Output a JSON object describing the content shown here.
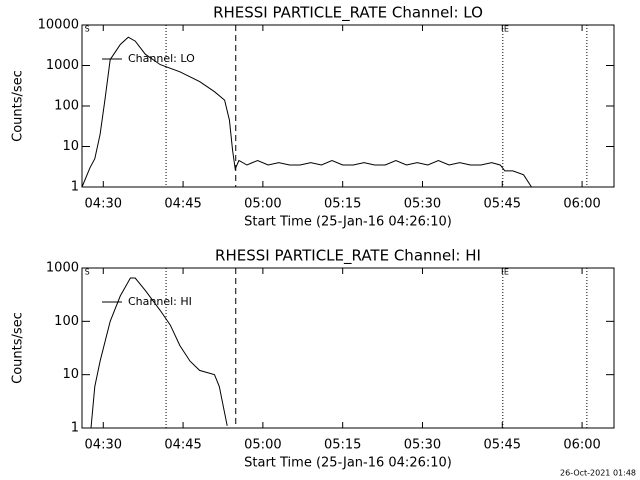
{
  "chart_data": [
    {
      "type": "line",
      "title": "RHESSI PARTICLE_RATE Channel: LO",
      "xlabel": "Start Time (25-Jan-16 04:26:10)",
      "ylabel": "Counts/sec",
      "log_y": true,
      "legend": "upper left",
      "xlim": [
        266,
        366
      ],
      "ylim": [
        1,
        10000
      ],
      "xticks": [
        {
          "value": 270,
          "label": "04:30"
        },
        {
          "value": 285,
          "label": "04:45"
        },
        {
          "value": 300,
          "label": "05:00"
        },
        {
          "value": 315,
          "label": "05:15"
        },
        {
          "value": 330,
          "label": "05:30"
        },
        {
          "value": 345,
          "label": "05:45"
        },
        {
          "value": 360,
          "label": "06:00"
        }
      ],
      "yticks": [
        1,
        10,
        100,
        1000,
        10000
      ],
      "vlines": [
        {
          "x": 281.8,
          "dash": "dotted"
        },
        {
          "x": 294.9,
          "dash": "dashed"
        },
        {
          "x": 345.1,
          "dash": "dotted"
        },
        {
          "x": 360.9,
          "dash": "dotted"
        }
      ],
      "annotations": [
        {
          "text": "S",
          "x": 266.5
        },
        {
          "text": "E",
          "x": 345.3
        }
      ],
      "x": [
        266,
        267.5,
        268.4,
        269.4,
        270.3,
        271.3,
        273.2,
        274.7,
        276,
        277.9,
        280.7,
        284.4,
        288.1,
        290.9,
        292.8,
        293.7,
        294.3,
        294.8,
        295.5,
        297,
        299,
        301,
        303,
        305,
        307,
        309,
        311,
        313,
        315,
        317,
        319,
        321,
        323,
        325,
        327,
        329,
        331,
        333,
        335,
        337,
        339,
        341,
        343,
        344.6,
        345.5,
        347,
        349,
        350.5
      ],
      "series": [
        {
          "name": "Channel: LO",
          "color": "#000000",
          "values": [
            1,
            3,
            5,
            20,
            140,
            1400,
            3300,
            5000,
            4000,
            1900,
            1050,
            700,
            400,
            225,
            140,
            45,
            8,
            2.8,
            4.5,
            3.5,
            4.5,
            3.5,
            4,
            3.5,
            3.5,
            4,
            3.5,
            4.5,
            3.5,
            3.5,
            4,
            3.5,
            3.5,
            4.5,
            3.5,
            4,
            3.5,
            4.5,
            3.5,
            4,
            3.5,
            3.5,
            4,
            3.5,
            2.5,
            2.5,
            2,
            1
          ]
        }
      ]
    },
    {
      "type": "line",
      "title": "RHESSI PARTICLE_RATE Channel: HI",
      "xlabel": "Start Time (25-Jan-16 04:26:10)",
      "ylabel": "Counts/sec",
      "log_y": true,
      "legend": "upper left",
      "xlim": [
        266,
        366
      ],
      "ylim": [
        1,
        1000
      ],
      "xticks": [
        {
          "value": 270,
          "label": "04:30"
        },
        {
          "value": 285,
          "label": "04:45"
        },
        {
          "value": 300,
          "label": "05:00"
        },
        {
          "value": 315,
          "label": "05:15"
        },
        {
          "value": 330,
          "label": "05:30"
        },
        {
          "value": 345,
          "label": "05:45"
        },
        {
          "value": 360,
          "label": "06:00"
        }
      ],
      "yticks": [
        1,
        10,
        100,
        1000
      ],
      "vlines": [
        {
          "x": 281.8,
          "dash": "dotted"
        },
        {
          "x": 294.9,
          "dash": "dashed"
        },
        {
          "x": 345.1,
          "dash": "dotted"
        },
        {
          "x": 360.9,
          "dash": "dotted"
        }
      ],
      "annotations": [
        {
          "text": "S",
          "x": 266.5
        },
        {
          "text": "E",
          "x": 345.3
        }
      ],
      "x": [
        267.7,
        268.4,
        269.4,
        271.3,
        273.2,
        275.1,
        276,
        277.9,
        280.7,
        282.6,
        284.4,
        286.3,
        288.1,
        290.9,
        291.8,
        293.3
      ],
      "series": [
        {
          "name": "Channel: HI",
          "color": "#000000",
          "values": [
            1,
            6,
            18,
            100,
            300,
            650,
            650,
            380,
            160,
            85,
            35,
            18,
            12,
            10,
            6,
            1.1
          ]
        }
      ]
    }
  ],
  "footer": "26-Oct-2021 01:48"
}
